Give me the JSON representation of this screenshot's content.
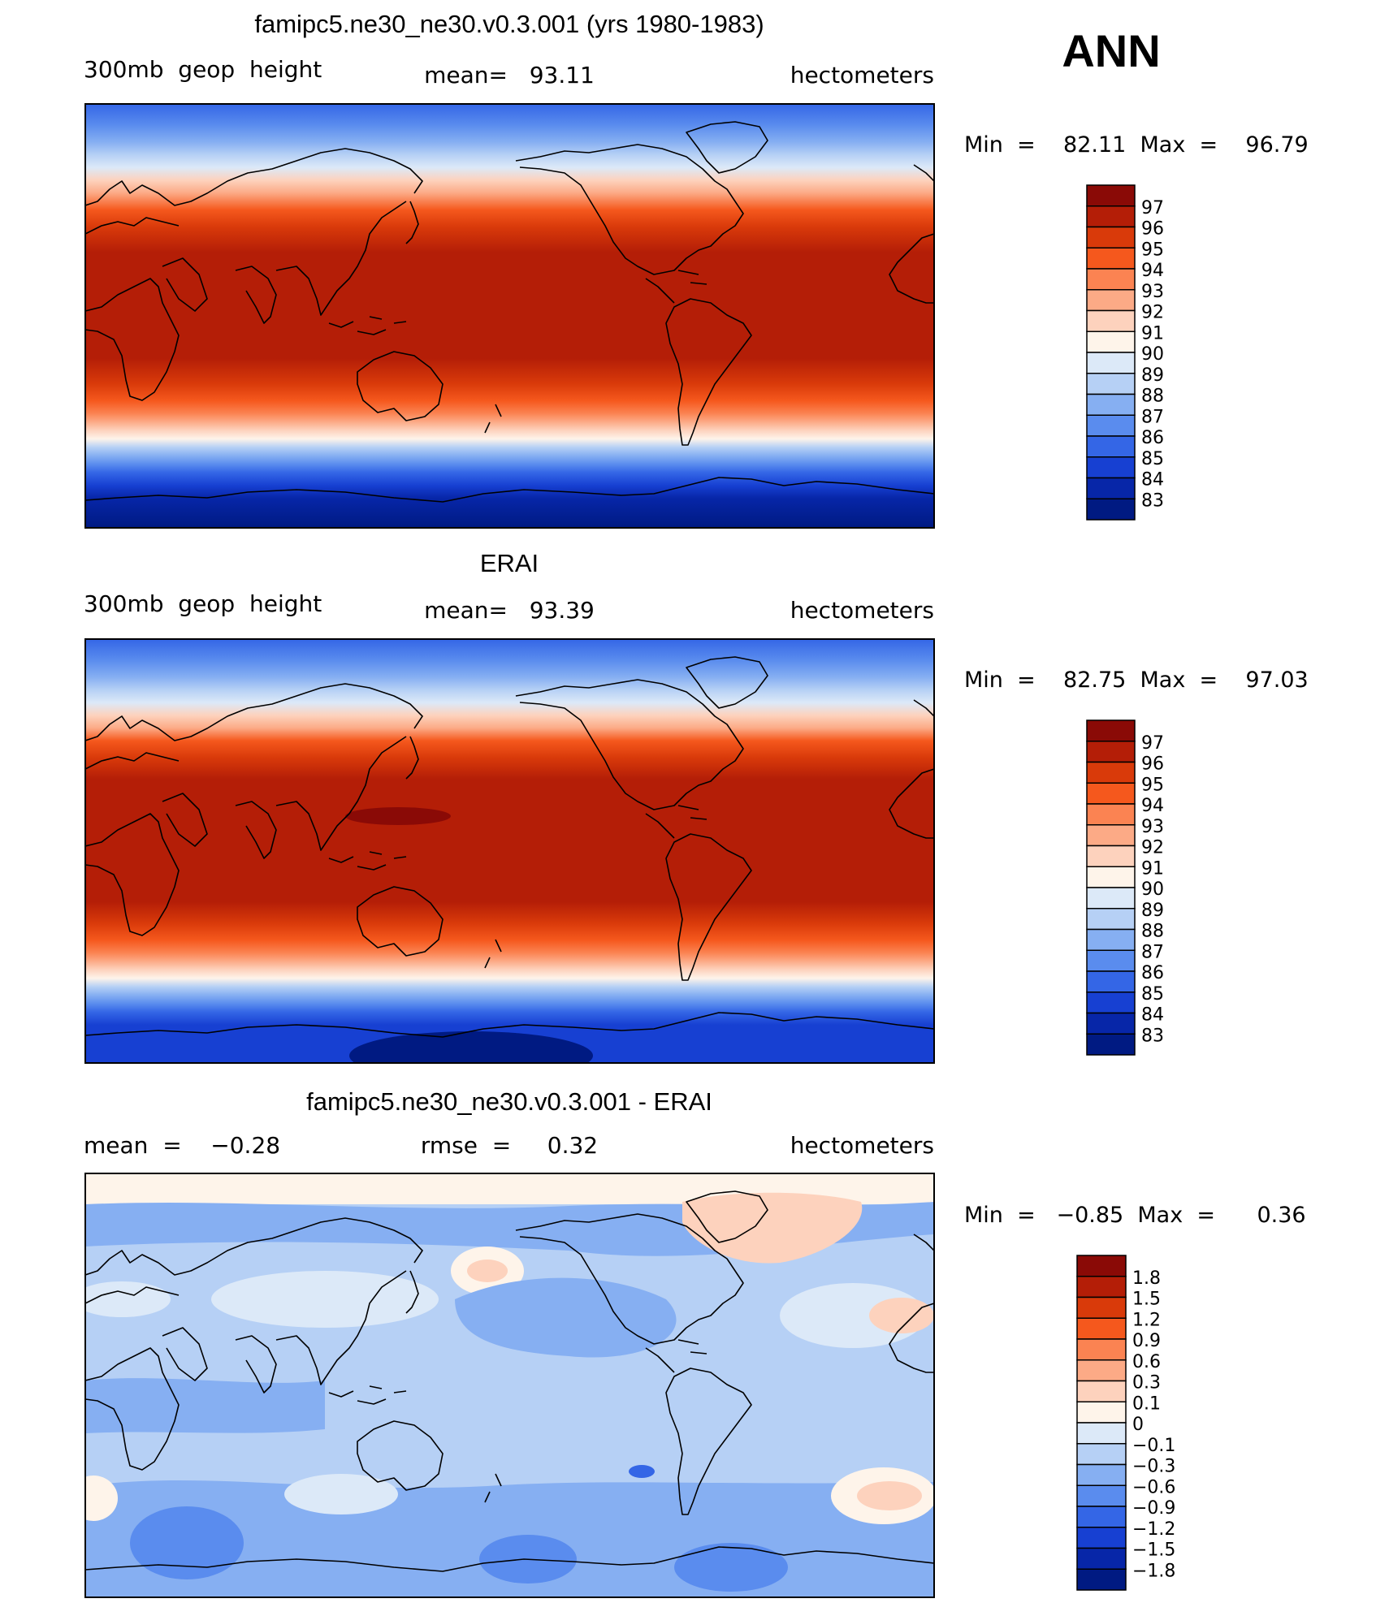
{
  "season": "ANN",
  "panels": [
    {
      "id": "model",
      "title": "famipc5.ne30_ne30.v0.3.001 (yrs 1980-1983)",
      "left_label": "300mb  geop  height",
      "center_label": "mean=   93.11",
      "right_label": "hectometers",
      "minmax": "Min  =    82.11  Max  =    96.79",
      "cbar_labels": [
        "97",
        "96",
        "95",
        "94",
        "93",
        "92",
        "91",
        "90",
        "89",
        "88",
        "87",
        "86",
        "85",
        "84",
        "83"
      ],
      "cbar_colors": [
        "#8a0a06",
        "#b41e07",
        "#d93a0a",
        "#f5581d",
        "#fb8352",
        "#fcaa86",
        "#fdd2bd",
        "#fef4ea",
        "#dce9f8",
        "#b6d0f5",
        "#86aff2",
        "#5a8cee",
        "#3466e6",
        "#1740d2",
        "#0726a8",
        "#001a82"
      ]
    },
    {
      "id": "obs",
      "title": "ERAI",
      "left_label": "300mb  geop  height",
      "center_label": "mean=   93.39",
      "right_label": "hectometers",
      "minmax": "Min  =    82.75  Max  =    97.03",
      "cbar_labels": [
        "97",
        "96",
        "95",
        "94",
        "93",
        "92",
        "91",
        "90",
        "89",
        "88",
        "87",
        "86",
        "85",
        "84",
        "83"
      ],
      "cbar_colors": [
        "#8a0a06",
        "#b41e07",
        "#d93a0a",
        "#f5581d",
        "#fb8352",
        "#fcaa86",
        "#fdd2bd",
        "#fef4ea",
        "#dce9f8",
        "#b6d0f5",
        "#86aff2",
        "#5a8cee",
        "#3466e6",
        "#1740d2",
        "#0726a8",
        "#001a82"
      ]
    },
    {
      "id": "diff",
      "title": "famipc5.ne30_ne30.v0.3.001 - ERAI",
      "left_label": "mean  =    −0.28",
      "center_label": "rmse  =     0.32",
      "right_label": "hectometers",
      "minmax": "Min  =   −0.85  Max  =      0.36",
      "cbar_labels": [
        "1.8",
        "1.5",
        "1.2",
        "0.9",
        "0.6",
        "0.3",
        "0.1",
        "0",
        "−0.1",
        "−0.3",
        "−0.6",
        "−0.9",
        "−1.2",
        "−1.5",
        "−1.8"
      ],
      "cbar_colors": [
        "#8a0a06",
        "#b41e07",
        "#d93a0a",
        "#f5581d",
        "#fb8352",
        "#fcaa86",
        "#fdd2bd",
        "#fef4ea",
        "#dce9f8",
        "#b6d0f5",
        "#86aff2",
        "#5a8cee",
        "#3466e6",
        "#1740d2",
        "#0726a8",
        "#001a82"
      ]
    }
  ]
}
